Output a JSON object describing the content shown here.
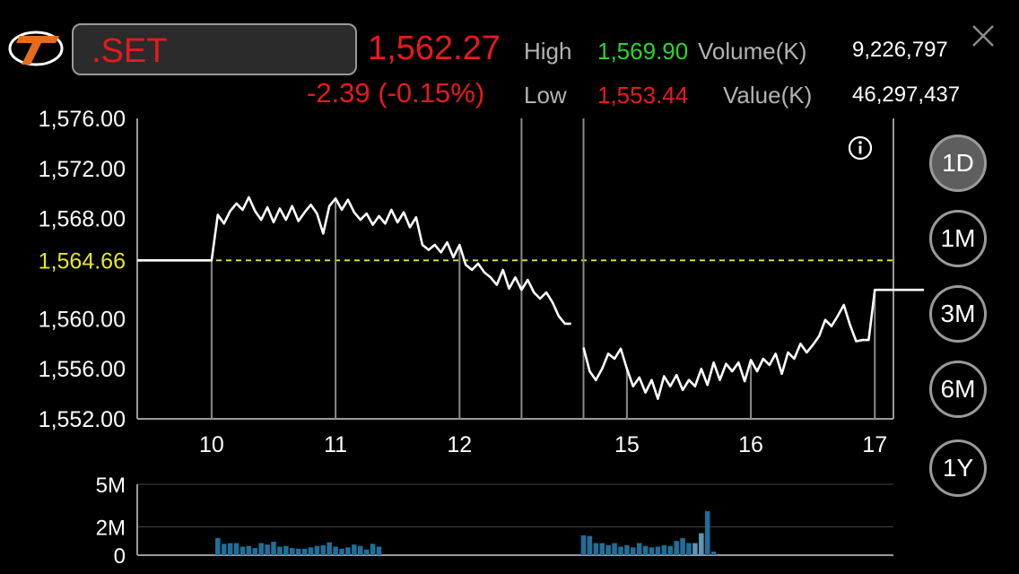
{
  "header": {
    "symbol": ".SET",
    "last_price": "1,562.27",
    "change": "-2.39 (-0.15%)",
    "high_label": "High",
    "high_value": "1,569.90",
    "low_label": "Low",
    "low_value": "1,553.44",
    "volume_label": "Volume(K)",
    "volume_value": "9,226,797",
    "value_label": "Value(K)",
    "value_value": "46,297,437"
  },
  "icons": {
    "logo": "brand-logo-icon",
    "close": "close-icon",
    "info": "info-icon"
  },
  "colors": {
    "up": "#2bd62b",
    "down": "#e8191d",
    "reference": "#e6e62a",
    "volume_bar": "#1f6f9a",
    "volume_bar_last": "#5b97b3"
  },
  "ranges": [
    {
      "label": "1D",
      "selected": true
    },
    {
      "label": "1M",
      "selected": false
    },
    {
      "label": "3M",
      "selected": false
    },
    {
      "label": "6M",
      "selected": false
    },
    {
      "label": "1Y",
      "selected": false
    }
  ],
  "chart_data": [
    {
      "type": "line",
      "y_ticks": [
        "1,576.00",
        "1,572.00",
        "1,568.00",
        "1,560.00",
        "1,556.00",
        "1,552.00"
      ],
      "y_tick_values": [
        1576,
        1572,
        1568,
        1560,
        1556,
        1552
      ],
      "ylim": [
        1552,
        1576
      ],
      "reference_label": "1,564.66",
      "reference_value": 1564.66,
      "x_ticks": [
        "10",
        "11",
        "12",
        "15",
        "16",
        "17"
      ],
      "x_tick_index": [
        12,
        32,
        52,
        79,
        99,
        119
      ],
      "session_breaks": [
        62,
        72
      ],
      "series": [
        {
          "segments": [
            {
              "start": 0,
              "values": [
                1564.66,
                1564.66,
                1564.66,
                1564.66,
                1564.66,
                1564.66,
                1564.66,
                1564.66,
                1564.66,
                1564.66,
                1564.66,
                1564.66,
                1564.66,
                1568.3,
                1567.6,
                1568.6,
                1569.2,
                1568.7,
                1569.7,
                1568.6,
                1567.9,
                1568.9,
                1567.7,
                1568.8,
                1567.9,
                1569.0,
                1567.8,
                1568.5,
                1569.1,
                1568.4,
                1566.8,
                1569.0,
                1569.6,
                1568.7,
                1569.5,
                1568.5,
                1567.9,
                1568.4,
                1567.5,
                1568.2,
                1567.6,
                1568.7,
                1567.7,
                1568.5,
                1567.3,
                1568.1,
                1565.9,
                1565.5,
                1565.9,
                1565.3,
                1566.1,
                1564.9,
                1565.9,
                1564.3,
                1563.9,
                1564.4,
                1563.7,
                1563.3,
                1562.7,
                1563.9,
                1562.4,
                1563.3,
                1562.3,
                1563.1,
                1562.1,
                1561.6,
                1562.1,
                1561.3,
                1560.2,
                1559.6,
                1559.6
              ]
            },
            {
              "start": 72,
              "values": [
                1557.7,
                1555.8,
                1555.1,
                1556.0,
                1557.2,
                1556.8,
                1557.6,
                1556.0,
                1554.6,
                1555.3,
                1554.1,
                1555.1,
                1553.6,
                1555.4,
                1554.6,
                1555.5,
                1554.3,
                1555.1,
                1554.6,
                1556.0,
                1554.7,
                1556.5,
                1555.1,
                1556.4,
                1555.8,
                1556.5,
                1555.0,
                1556.7,
                1555.8,
                1556.8,
                1556.3,
                1557.2,
                1555.6,
                1557.3,
                1556.8,
                1558.0,
                1557.3,
                1557.9,
                1558.6,
                1559.9,
                1559.4,
                1560.2,
                1561.1,
                1559.5,
                1558.2,
                1558.3,
                1558.3,
                1562.3,
                1562.3,
                1562.3,
                1562.3,
                1562.3,
                1562.3,
                1562.3,
                1562.3,
                1562.3
              ]
            }
          ]
        }
      ]
    },
    {
      "type": "bar",
      "y_ticks": [
        "5M",
        "2M",
        "0"
      ],
      "ylim": [
        0,
        5000000
      ],
      "segments": [
        {
          "start": 0,
          "values": [
            0,
            0,
            0,
            0,
            0,
            0,
            0,
            0,
            0,
            0,
            0,
            0,
            0,
            1200000,
            800000,
            850000,
            850000,
            600000,
            650000,
            500000,
            850000,
            750000,
            950000,
            600000,
            650000,
            500000,
            450000,
            450000,
            550000,
            650000,
            700000,
            900000,
            600000,
            450000,
            550000,
            750000,
            650000,
            400000,
            800000,
            600000,
            0,
            0,
            0,
            0,
            0,
            0,
            0,
            0,
            0
          ]
        },
        {
          "start": 72,
          "values": [
            1400000,
            1350000,
            850000,
            850000,
            700000,
            850000,
            600000,
            700000,
            550000,
            850000,
            650000,
            550000,
            600000,
            700000,
            650000,
            1000000,
            1200000,
            850000,
            850000,
            1550000,
            3100000,
            250000
          ]
        }
      ],
      "highlight_index": 91
    }
  ]
}
